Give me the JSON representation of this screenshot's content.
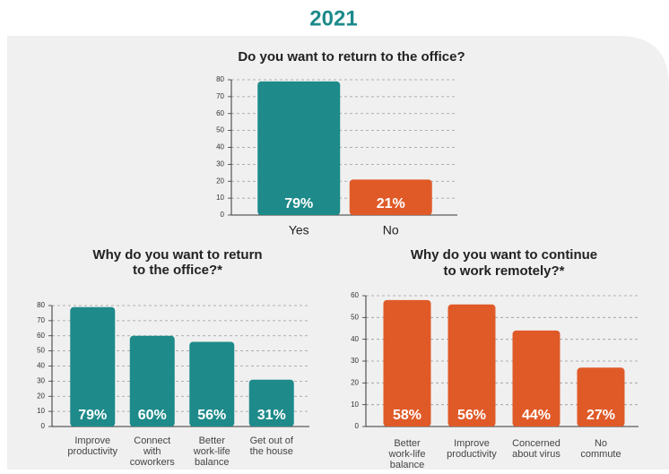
{
  "heading": "2021",
  "chart_data": [
    {
      "type": "bar",
      "title": [
        "Do you want to return to the office?"
      ],
      "categories": [
        [
          "Yes"
        ],
        [
          "No"
        ]
      ],
      "values": [
        79,
        21
      ],
      "value_labels": [
        "79%",
        "21%"
      ],
      "colors": [
        "#1e8a8a",
        "#e05a28"
      ],
      "ylim": [
        0,
        80
      ],
      "yticks": [
        0,
        10,
        20,
        30,
        40,
        50,
        60,
        70,
        80
      ],
      "grid": true
    },
    {
      "type": "bar",
      "title": [
        "Why do you want to return",
        "to the office?*"
      ],
      "categories": [
        [
          "Improve",
          "productivity"
        ],
        [
          "Connect",
          "with",
          "coworkers"
        ],
        [
          "Better",
          "work-life",
          "balance"
        ],
        [
          "Get out of",
          "the house"
        ]
      ],
      "values": [
        79,
        60,
        56,
        31
      ],
      "value_labels": [
        "79%",
        "60%",
        "56%",
        "31%"
      ],
      "colors": [
        "#1e8a8a",
        "#1e8a8a",
        "#1e8a8a",
        "#1e8a8a"
      ],
      "ylim": [
        0,
        80
      ],
      "yticks": [
        0,
        10,
        20,
        30,
        40,
        50,
        60,
        70,
        80
      ],
      "grid": true
    },
    {
      "type": "bar",
      "title": [
        "Why do you want to continue",
        "to work remotely?*"
      ],
      "categories": [
        [
          "Better",
          "work-life",
          "balance"
        ],
        [
          "Improve",
          "productivity"
        ],
        [
          "Concerned",
          "about virus"
        ],
        [
          "No",
          "commute"
        ]
      ],
      "values": [
        58,
        56,
        44,
        27
      ],
      "value_labels": [
        "58%",
        "56%",
        "44%",
        "27%"
      ],
      "colors": [
        "#e05a28",
        "#e05a28",
        "#e05a28",
        "#e05a28"
      ],
      "ylim": [
        0,
        60
      ],
      "yticks": [
        0,
        10,
        20,
        30,
        40,
        50,
        60
      ],
      "grid": true
    }
  ]
}
